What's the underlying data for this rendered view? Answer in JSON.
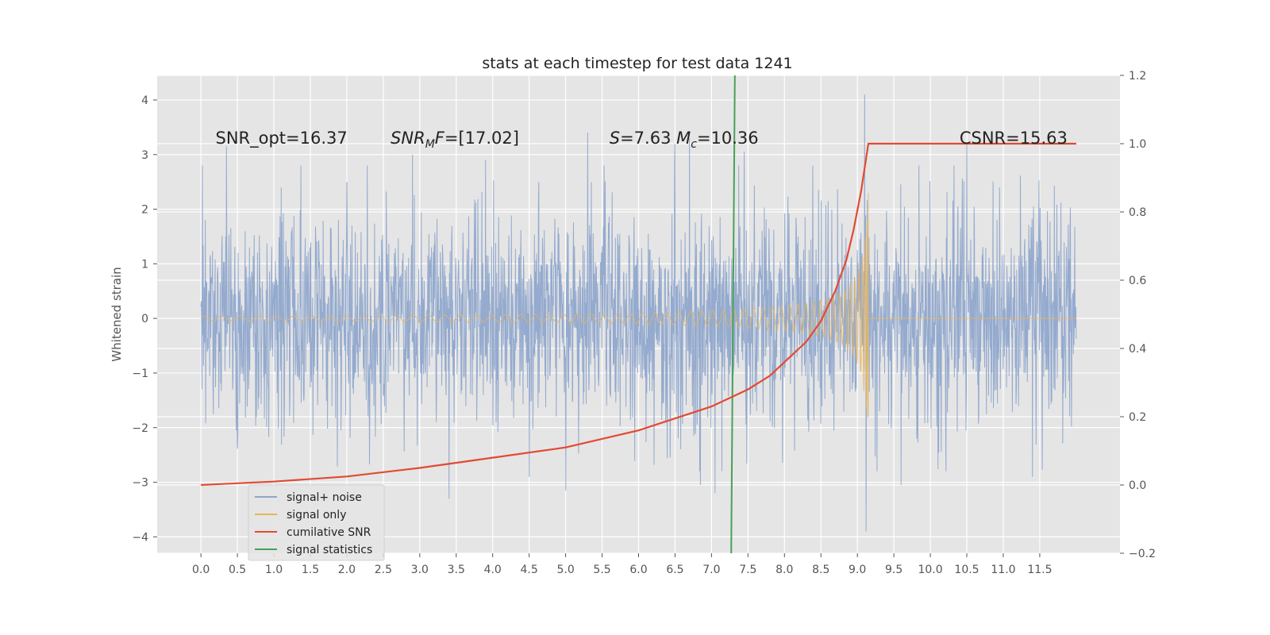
{
  "chart_data": {
    "type": "line",
    "title": "stats at each timestep for test data 1241",
    "ylabel": "Whitened strain",
    "xlabel": "",
    "xlim": [
      -0.6,
      12.6
    ],
    "ylim": [
      -4.3,
      4.45
    ],
    "y2lim": [
      -0.2,
      1.2
    ],
    "grid": true,
    "background": "#e5e5e5",
    "x_ticks": [
      0.0,
      0.5,
      1.0,
      1.5,
      2.0,
      2.5,
      3.0,
      3.5,
      4.0,
      4.5,
      5.0,
      5.5,
      6.0,
      6.5,
      7.0,
      7.5,
      8.0,
      8.5,
      9.0,
      9.5,
      10.0,
      10.5,
      11.0,
      11.5
    ],
    "x_tick_labels": [
      "0.0",
      "0.5",
      "1.0",
      "1.5",
      "2.0",
      "2.5",
      "3.0",
      "3.5",
      "4.0",
      "4.5",
      "5.0",
      "5.5",
      "6.0",
      "6.5",
      "7.0",
      "7.5",
      "8.0",
      "8.5",
      "9.0",
      "9.5",
      "10.0",
      "10.5",
      "11.0",
      "11.5"
    ],
    "y_ticks": [
      -4,
      -3,
      -2,
      -1,
      0,
      1,
      2,
      3,
      4
    ],
    "y_tick_labels": [
      "−4",
      "−3",
      "−2",
      "−1",
      "0",
      "1",
      "2",
      "3",
      "4"
    ],
    "y2_ticks": [
      -0.2,
      0.0,
      0.2,
      0.4,
      0.6,
      0.8,
      1.0,
      1.2
    ],
    "y2_tick_labels": [
      "−0.2",
      "0.0",
      "0.2",
      "0.4",
      "0.6",
      "0.8",
      "1.0",
      "1.2"
    ],
    "annotations": [
      {
        "text": "SNR_opt=16.37",
        "x": 0.2,
        "y": 3.3
      },
      {
        "text": "SNR_MF=[17.02]",
        "x": 2.6,
        "y": 3.3
      },
      {
        "text": "S=7.63   M_c=10.36",
        "x": 5.6,
        "y": 3.3
      },
      {
        "text": "CSNR=15.63",
        "x": 10.4,
        "y": 3.3
      }
    ],
    "series": [
      {
        "name": "signal+ noise",
        "color": "#8fa6cc",
        "kind": "noise",
        "x_range": [
          0.0,
          12.0
        ],
        "typical_amplitude": 1.8,
        "peak_values": [
          {
            "x": 0.35,
            "y": 3.15
          },
          {
            "x": 2.0,
            "y": 2.5
          },
          {
            "x": 2.9,
            "y": 3.0
          },
          {
            "x": 3.4,
            "y": -3.3
          },
          {
            "x": 3.9,
            "y": 2.9
          },
          {
            "x": 4.5,
            "y": -2.9
          },
          {
            "x": 5.0,
            "y": -3.15
          },
          {
            "x": 5.3,
            "y": 3.4
          },
          {
            "x": 6.5,
            "y": 3.2
          },
          {
            "x": 6.7,
            "y": 3.3
          },
          {
            "x": 6.85,
            "y": -3.05
          },
          {
            "x": 7.05,
            "y": -3.2
          },
          {
            "x": 7.45,
            "y": 3.05
          },
          {
            "x": 9.1,
            "y": 4.1
          },
          {
            "x": 9.12,
            "y": -3.9
          },
          {
            "x": 9.6,
            "y": -3.05
          },
          {
            "x": 10.5,
            "y": 3.2
          },
          {
            "x": 11.4,
            "y": -2.9
          }
        ]
      },
      {
        "name": "signal only",
        "color": "#e7b45a",
        "kind": "chirp",
        "merger_x": 9.15,
        "envelope_x": [
          0.0,
          2.0,
          4.0,
          5.0,
          6.0,
          6.5,
          7.0,
          7.5,
          8.0,
          8.3,
          8.6,
          8.8,
          8.95,
          9.05,
          9.12,
          9.15
        ],
        "envelope_y": [
          0.04,
          0.05,
          0.07,
          0.08,
          0.1,
          0.12,
          0.14,
          0.18,
          0.23,
          0.28,
          0.36,
          0.48,
          0.7,
          1.0,
          1.6,
          2.2
        ]
      },
      {
        "name": "cumilative SNR",
        "color": "#e24a33",
        "axis": "right",
        "x": [
          0.0,
          1.0,
          2.0,
          3.0,
          4.0,
          5.0,
          6.0,
          7.0,
          7.5,
          7.8,
          8.0,
          8.3,
          8.5,
          8.7,
          8.85,
          8.95,
          9.05,
          9.15,
          12.0
        ],
        "y": [
          0.0,
          0.01,
          0.025,
          0.05,
          0.08,
          0.11,
          0.16,
          0.23,
          0.28,
          0.32,
          0.36,
          0.42,
          0.48,
          0.57,
          0.66,
          0.75,
          0.86,
          1.0,
          1.0
        ]
      },
      {
        "name": "signal statistics",
        "color": "#348abd",
        "line_color": "#4aa05a",
        "x": [
          7.27,
          7.32
        ],
        "y": [
          -4.3,
          4.45
        ]
      }
    ],
    "legend": {
      "position": "lower-left",
      "entries": [
        {
          "label": "signal+ noise",
          "color": "#8fa6cc"
        },
        {
          "label": "signal only",
          "color": "#e7b45a"
        },
        {
          "label": "cumilative SNR",
          "color": "#e24a33"
        },
        {
          "label": "signal statistics",
          "color": "#4aa05a"
        }
      ]
    }
  }
}
